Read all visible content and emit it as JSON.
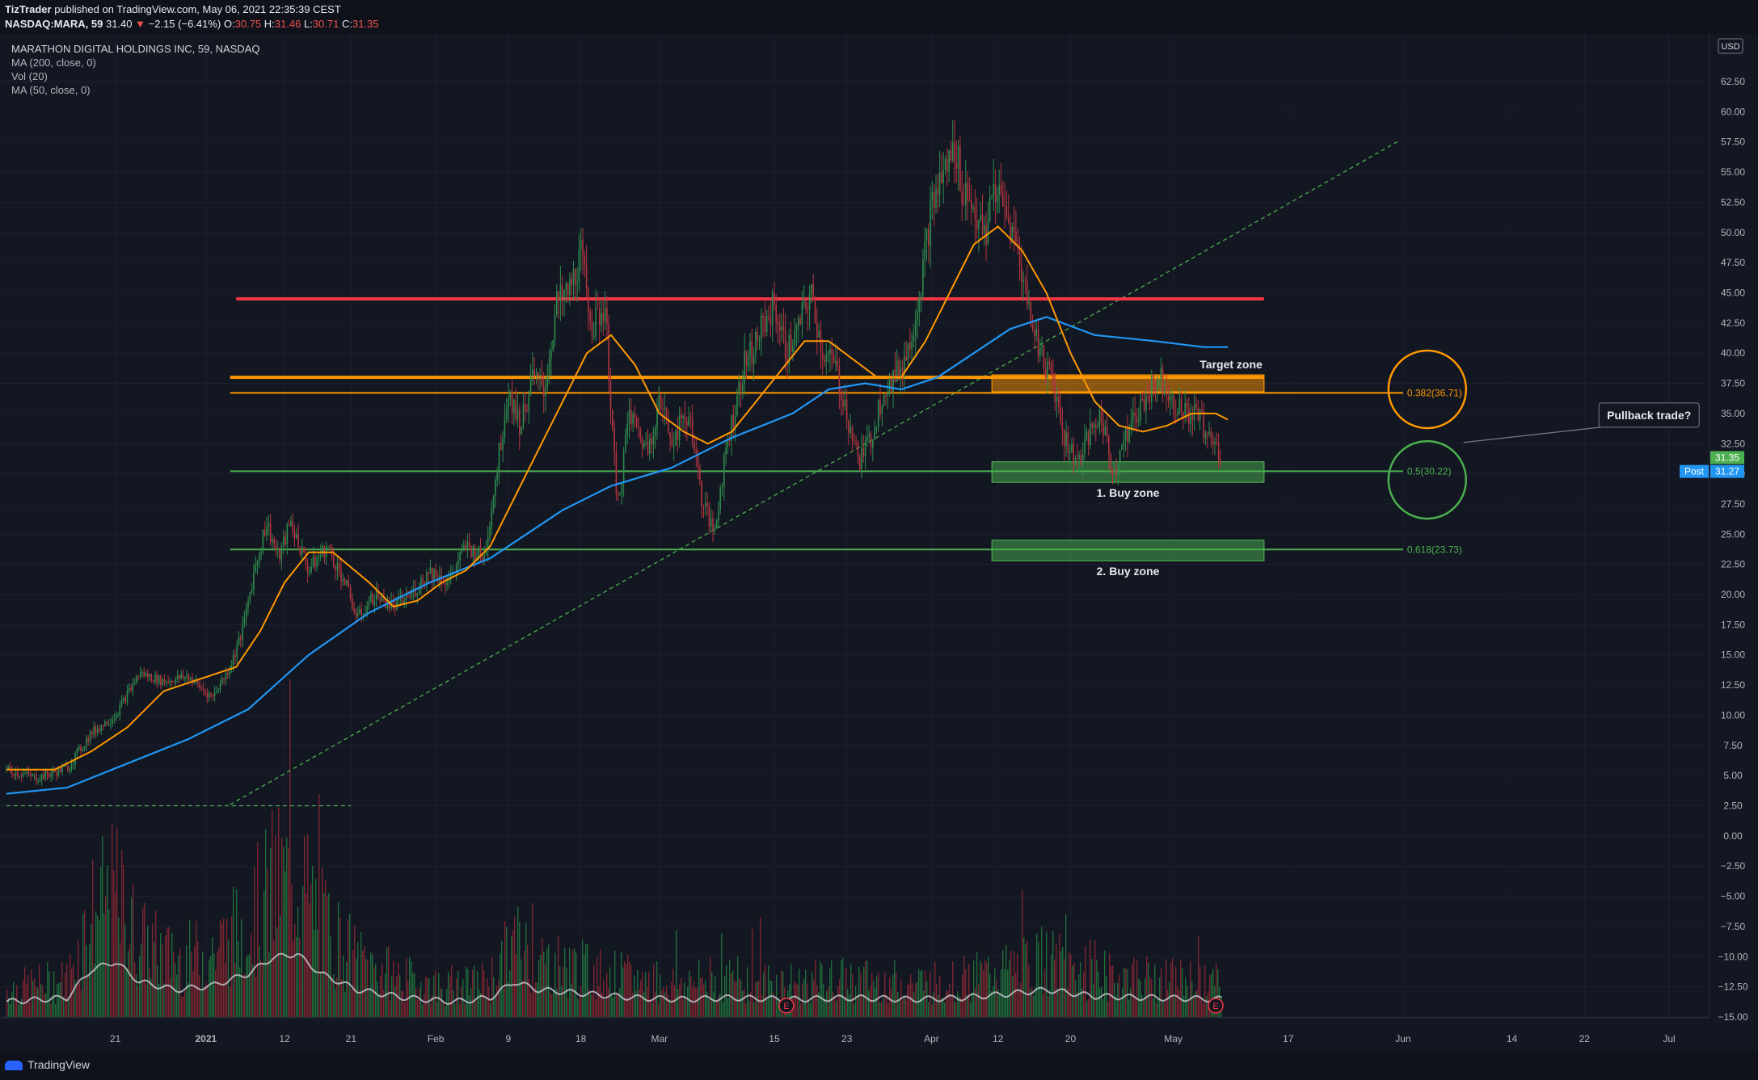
{
  "header": {
    "publisher": "TizTrader",
    "published_text": "published on TradingView.com, May 06, 2021 22:35:39 CEST",
    "symbol": "NASDAQ:MARA, 59",
    "last": "31.40",
    "change": "−2.15 (−6.41%)",
    "o_label": "O:",
    "o": "30.75",
    "h_label": "H:",
    "h": "31.46",
    "l_label": "L:",
    "l": "30.71",
    "c_label": "C:",
    "c": "31.35"
  },
  "legend": {
    "title": "MARATHON DIGITAL HOLDINGS INC, 59, NASDAQ",
    "ma200": "MA (200, close, 0)",
    "vol": "Vol (20)",
    "ma50": "MA (50, close, 0)"
  },
  "footer": {
    "brand": "TradingView"
  },
  "chart_data": {
    "type": "line",
    "title": "MARATHON DIGITAL HOLDINGS INC, 59, NASDAQ",
    "currency": "USD",
    "price_axis": {
      "min": -15,
      "max": 62.5,
      "step": 2.5,
      "ticks": [
        "62.50",
        "60.00",
        "57.50",
        "55.00",
        "52.50",
        "50.00",
        "47.50",
        "45.00",
        "42.50",
        "40.00",
        "37.50",
        "35.00",
        "32.50",
        "30.00",
        "27.50",
        "25.00",
        "22.50",
        "20.00",
        "17.50",
        "15.00",
        "12.50",
        "10.00",
        "7.50",
        "5.00",
        "2.50",
        "0.00",
        "−2.50",
        "−5.00",
        "−7.50",
        "−10.00",
        "−12.50",
        "−15.00"
      ]
    },
    "time_axis": {
      "labels": [
        {
          "label": "21",
          "i": 18
        },
        {
          "label": "2021",
          "i": 33
        },
        {
          "label": "12",
          "i": 46
        },
        {
          "label": "21",
          "i": 57
        },
        {
          "label": "Feb",
          "i": 71
        },
        {
          "label": "9",
          "i": 83
        },
        {
          "label": "18",
          "i": 95
        },
        {
          "label": "Mar",
          "i": 108
        },
        {
          "label": "15",
          "i": 127
        },
        {
          "label": "23",
          "i": 139
        },
        {
          "label": "Apr",
          "i": 153
        },
        {
          "label": "12",
          "i": 164
        },
        {
          "label": "20",
          "i": 176
        },
        {
          "label": "May",
          "i": 193
        },
        {
          "label": "17",
          "i": 212
        },
        {
          "label": "Jun",
          "i": 231
        },
        {
          "label": "14",
          "i": 249
        },
        {
          "label": "22",
          "i": 261
        },
        {
          "label": "Jul",
          "i": 275
        }
      ]
    },
    "price_series": [
      {
        "i": 0,
        "v": 5.5
      },
      {
        "i": 5,
        "v": 4.8
      },
      {
        "i": 10,
        "v": 5.6
      },
      {
        "i": 14,
        "v": 8.5
      },
      {
        "i": 18,
        "v": 10
      },
      {
        "i": 22,
        "v": 13.5
      },
      {
        "i": 26,
        "v": 12.8
      },
      {
        "i": 30,
        "v": 13.2
      },
      {
        "i": 34,
        "v": 11.5
      },
      {
        "i": 37,
        "v": 14
      },
      {
        "i": 39,
        "v": 17
      },
      {
        "i": 41,
        "v": 22
      },
      {
        "i": 43,
        "v": 26
      },
      {
        "i": 45,
        "v": 23
      },
      {
        "i": 47,
        "v": 26
      },
      {
        "i": 50,
        "v": 22
      },
      {
        "i": 53,
        "v": 24
      },
      {
        "i": 56,
        "v": 21
      },
      {
        "i": 58,
        "v": 18
      },
      {
        "i": 61,
        "v": 20
      },
      {
        "i": 64,
        "v": 19
      },
      {
        "i": 67,
        "v": 20
      },
      {
        "i": 70,
        "v": 22
      },
      {
        "i": 73,
        "v": 21
      },
      {
        "i": 76,
        "v": 24
      },
      {
        "i": 79,
        "v": 23
      },
      {
        "i": 81,
        "v": 30
      },
      {
        "i": 83,
        "v": 37
      },
      {
        "i": 85,
        "v": 34
      },
      {
        "i": 87,
        "v": 38
      },
      {
        "i": 89,
        "v": 37
      },
      {
        "i": 91,
        "v": 44
      },
      {
        "i": 93,
        "v": 45
      },
      {
        "i": 95,
        "v": 48
      },
      {
        "i": 97,
        "v": 42
      },
      {
        "i": 99,
        "v": 44
      },
      {
        "i": 101,
        "v": 27
      },
      {
        "i": 103,
        "v": 35
      },
      {
        "i": 106,
        "v": 32
      },
      {
        "i": 108,
        "v": 36
      },
      {
        "i": 110,
        "v": 33
      },
      {
        "i": 113,
        "v": 35
      },
      {
        "i": 115,
        "v": 28
      },
      {
        "i": 117,
        "v": 25
      },
      {
        "i": 119,
        "v": 32
      },
      {
        "i": 122,
        "v": 39
      },
      {
        "i": 125,
        "v": 42
      },
      {
        "i": 127,
        "v": 44
      },
      {
        "i": 129,
        "v": 40
      },
      {
        "i": 131,
        "v": 42
      },
      {
        "i": 133,
        "v": 45
      },
      {
        "i": 135,
        "v": 40
      },
      {
        "i": 137,
        "v": 39
      },
      {
        "i": 139,
        "v": 35
      },
      {
        "i": 141,
        "v": 31
      },
      {
        "i": 143,
        "v": 33
      },
      {
        "i": 145,
        "v": 37
      },
      {
        "i": 147,
        "v": 38
      },
      {
        "i": 149,
        "v": 40
      },
      {
        "i": 151,
        "v": 45
      },
      {
        "i": 153,
        "v": 52
      },
      {
        "i": 155,
        "v": 55
      },
      {
        "i": 157,
        "v": 57
      },
      {
        "i": 158,
        "v": 54
      },
      {
        "i": 160,
        "v": 52
      },
      {
        "i": 162,
        "v": 49
      },
      {
        "i": 163,
        "v": 54
      },
      {
        "i": 165,
        "v": 52
      },
      {
        "i": 167,
        "v": 49
      },
      {
        "i": 169,
        "v": 44
      },
      {
        "i": 171,
        "v": 40
      },
      {
        "i": 173,
        "v": 38
      },
      {
        "i": 175,
        "v": 33
      },
      {
        "i": 177,
        "v": 31
      },
      {
        "i": 179,
        "v": 33
      },
      {
        "i": 181,
        "v": 35
      },
      {
        "i": 183,
        "v": 30
      },
      {
        "i": 185,
        "v": 33
      },
      {
        "i": 187,
        "v": 35
      },
      {
        "i": 189,
        "v": 37
      },
      {
        "i": 191,
        "v": 38
      },
      {
        "i": 193,
        "v": 36
      },
      {
        "i": 195,
        "v": 35
      },
      {
        "i": 197,
        "v": 35
      },
      {
        "i": 199,
        "v": 33
      },
      {
        "i": 201,
        "v": 31.4
      }
    ],
    "ma50": [
      {
        "i": 0,
        "v": 5.5
      },
      {
        "i": 8,
        "v": 5.5
      },
      {
        "i": 14,
        "v": 7
      },
      {
        "i": 20,
        "v": 9
      },
      {
        "i": 26,
        "v": 12
      },
      {
        "i": 32,
        "v": 13
      },
      {
        "i": 38,
        "v": 14
      },
      {
        "i": 42,
        "v": 17
      },
      {
        "i": 46,
        "v": 21
      },
      {
        "i": 50,
        "v": 23.5
      },
      {
        "i": 54,
        "v": 23.5
      },
      {
        "i": 60,
        "v": 21
      },
      {
        "i": 64,
        "v": 19
      },
      {
        "i": 68,
        "v": 19.5
      },
      {
        "i": 72,
        "v": 21
      },
      {
        "i": 76,
        "v": 22
      },
      {
        "i": 80,
        "v": 24
      },
      {
        "i": 84,
        "v": 28
      },
      {
        "i": 88,
        "v": 32
      },
      {
        "i": 92,
        "v": 36
      },
      {
        "i": 96,
        "v": 40
      },
      {
        "i": 100,
        "v": 41.5
      },
      {
        "i": 104,
        "v": 39
      },
      {
        "i": 108,
        "v": 35
      },
      {
        "i": 112,
        "v": 33.5
      },
      {
        "i": 116,
        "v": 32.5
      },
      {
        "i": 120,
        "v": 33.5
      },
      {
        "i": 124,
        "v": 36
      },
      {
        "i": 128,
        "v": 38.5
      },
      {
        "i": 132,
        "v": 41
      },
      {
        "i": 136,
        "v": 41
      },
      {
        "i": 140,
        "v": 39.5
      },
      {
        "i": 144,
        "v": 38
      },
      {
        "i": 148,
        "v": 38
      },
      {
        "i": 152,
        "v": 41
      },
      {
        "i": 156,
        "v": 45
      },
      {
        "i": 160,
        "v": 49
      },
      {
        "i": 164,
        "v": 50.5
      },
      {
        "i": 168,
        "v": 48.5
      },
      {
        "i": 172,
        "v": 45
      },
      {
        "i": 176,
        "v": 40
      },
      {
        "i": 180,
        "v": 36
      },
      {
        "i": 184,
        "v": 34
      },
      {
        "i": 188,
        "v": 33.5
      },
      {
        "i": 192,
        "v": 34
      },
      {
        "i": 196,
        "v": 35
      },
      {
        "i": 200,
        "v": 35
      },
      {
        "i": 202,
        "v": 34.5
      }
    ],
    "ma200": [
      {
        "i": 0,
        "v": 3.5
      },
      {
        "i": 10,
        "v": 4
      },
      {
        "i": 20,
        "v": 6
      },
      {
        "i": 30,
        "v": 8
      },
      {
        "i": 40,
        "v": 10.5
      },
      {
        "i": 50,
        "v": 15
      },
      {
        "i": 60,
        "v": 18.5
      },
      {
        "i": 70,
        "v": 21
      },
      {
        "i": 80,
        "v": 23
      },
      {
        "i": 86,
        "v": 25
      },
      {
        "i": 92,
        "v": 27
      },
      {
        "i": 100,
        "v": 29
      },
      {
        "i": 110,
        "v": 30.5
      },
      {
        "i": 120,
        "v": 33
      },
      {
        "i": 130,
        "v": 35
      },
      {
        "i": 136,
        "v": 37
      },
      {
        "i": 142,
        "v": 37.5
      },
      {
        "i": 148,
        "v": 37
      },
      {
        "i": 154,
        "v": 38
      },
      {
        "i": 160,
        "v": 40
      },
      {
        "i": 166,
        "v": 42
      },
      {
        "i": 172,
        "v": 43
      },
      {
        "i": 180,
        "v": 41.5
      },
      {
        "i": 190,
        "v": 41
      },
      {
        "i": 198,
        "v": 40.5
      },
      {
        "i": 202,
        "v": 40.5
      }
    ],
    "volume": [
      {
        "i": 0,
        "v": 0.15
      },
      {
        "i": 10,
        "v": 0.2
      },
      {
        "i": 14,
        "v": 0.55
      },
      {
        "i": 18,
        "v": 0.65
      },
      {
        "i": 22,
        "v": 0.4
      },
      {
        "i": 28,
        "v": 0.3
      },
      {
        "i": 34,
        "v": 0.35
      },
      {
        "i": 40,
        "v": 0.5
      },
      {
        "i": 44,
        "v": 0.7
      },
      {
        "i": 48,
        "v": 0.75
      },
      {
        "i": 52,
        "v": 0.5
      },
      {
        "i": 58,
        "v": 0.3
      },
      {
        "i": 66,
        "v": 0.2
      },
      {
        "i": 74,
        "v": 0.15
      },
      {
        "i": 80,
        "v": 0.2
      },
      {
        "i": 84,
        "v": 0.4
      },
      {
        "i": 88,
        "v": 0.3
      },
      {
        "i": 96,
        "v": 0.25
      },
      {
        "i": 104,
        "v": 0.2
      },
      {
        "i": 112,
        "v": 0.18
      },
      {
        "i": 120,
        "v": 0.2
      },
      {
        "i": 130,
        "v": 0.18
      },
      {
        "i": 140,
        "v": 0.2
      },
      {
        "i": 150,
        "v": 0.18
      },
      {
        "i": 158,
        "v": 0.2
      },
      {
        "i": 166,
        "v": 0.25
      },
      {
        "i": 172,
        "v": 0.3
      },
      {
        "i": 180,
        "v": 0.22
      },
      {
        "i": 190,
        "v": 0.2
      },
      {
        "i": 202,
        "v": 0.18
      }
    ],
    "earnings_markers": [
      {
        "label": "E",
        "i": 129
      },
      {
        "label": "E",
        "i": 200
      }
    ],
    "horizontal_lines": [
      {
        "price": 44.5,
        "i0": 38,
        "i1": 208,
        "color": "#f23645",
        "width": 4
      },
      {
        "price": 38,
        "i0": 37,
        "i1": 208,
        "color": "#ff9800",
        "width": 4
      },
      {
        "price": 36.71,
        "i0": 37,
        "i1": 231,
        "color": "#ff9800",
        "width": 2
      },
      {
        "price": 30.22,
        "i0": 37,
        "i1": 231,
        "color": "#4caf50",
        "width": 2
      },
      {
        "price": 23.73,
        "i0": 37,
        "i1": 231,
        "color": "#4caf50",
        "width": 2
      }
    ],
    "zones": [
      {
        "label": "Target zone",
        "top": 38.2,
        "bottom": 36.8,
        "i0": 163,
        "i1": 208,
        "color": "#ff9800"
      },
      {
        "label": "1. Buy zone",
        "top": 31,
        "bottom": 29.3,
        "i0": 163,
        "i1": 208,
        "color": "#4caf50"
      },
      {
        "label": "2. Buy zone",
        "top": 24.5,
        "bottom": 22.8,
        "i0": 163,
        "i1": 208,
        "color": "#4caf50"
      }
    ],
    "fib_labels": [
      {
        "text": "0.382(36.71)",
        "price": 36.71,
        "color": "#ff9800"
      },
      {
        "text": "0.5(30.22)",
        "price": 30.22,
        "color": "#4caf50"
      },
      {
        "text": "0.618(23.73)",
        "price": 23.73,
        "color": "#4caf50"
      }
    ],
    "circles": [
      {
        "price": 37,
        "i": 235,
        "color": "#ff9800"
      },
      {
        "price": 29.5,
        "i": 235,
        "color": "#4caf50"
      }
    ],
    "trendline": {
      "i0": 37,
      "v0": 2.6,
      "i1": 230,
      "v1": 57.5
    },
    "base_line": {
      "i0": 0,
      "i1": 57,
      "v": 2.5
    },
    "callout": {
      "text": "Pullback trade?",
      "price": 34.8,
      "i": 265
    },
    "price_labels": [
      {
        "text": "31.35",
        "price": 31.35,
        "color": "#4caf50"
      },
      {
        "prefix": "Post",
        "text": "31.27",
        "price": 30.2,
        "color": "#2196f3"
      }
    ]
  }
}
